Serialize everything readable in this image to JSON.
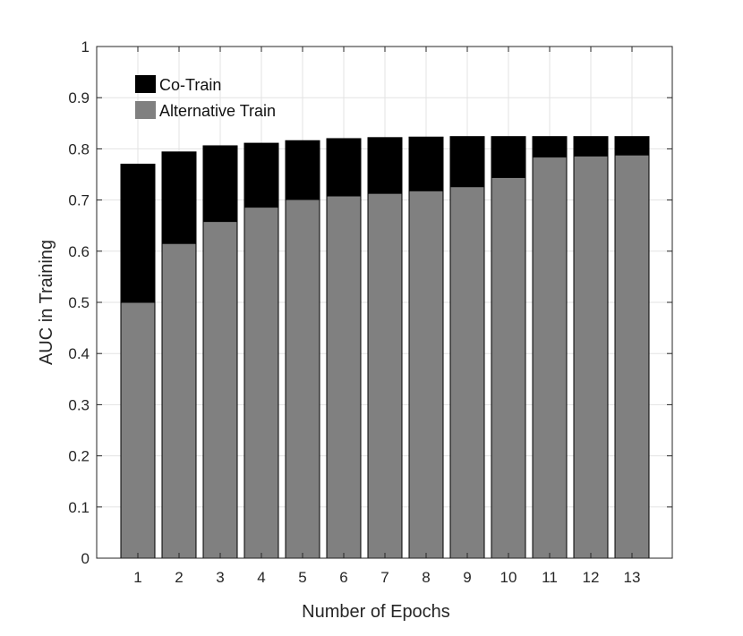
{
  "chart_data": {
    "type": "bar",
    "stacked": "overlay",
    "xlabel": "Number of Epochs",
    "ylabel": "AUC in Training",
    "ylim": [
      0,
      1
    ],
    "yticks": [
      "0",
      "0.1",
      "0.2",
      "0.3",
      "0.4",
      "0.5",
      "0.6",
      "0.7",
      "0.8",
      "0.9",
      "1"
    ],
    "grid": true,
    "legend_position": "top-left",
    "categories": [
      "1",
      "2",
      "3",
      "4",
      "5",
      "6",
      "7",
      "8",
      "9",
      "10",
      "11",
      "12",
      "13"
    ],
    "series": [
      {
        "name": "Co-Train",
        "color": "#000000",
        "values": [
          0.77,
          0.794,
          0.806,
          0.811,
          0.816,
          0.82,
          0.822,
          0.823,
          0.824,
          0.824,
          0.824,
          0.824,
          0.824
        ]
      },
      {
        "name": "Alternative Train",
        "color": "#808080",
        "values": [
          0.5,
          0.615,
          0.658,
          0.686,
          0.701,
          0.708,
          0.713,
          0.718,
          0.726,
          0.744,
          0.784,
          0.786,
          0.788
        ]
      }
    ]
  }
}
